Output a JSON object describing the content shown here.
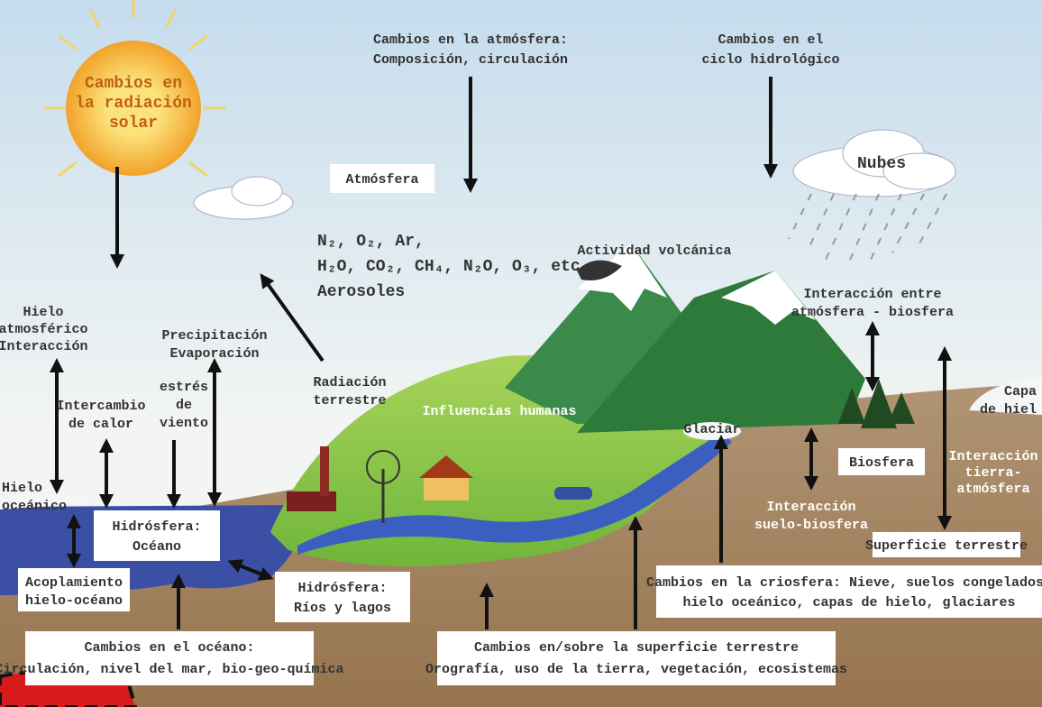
{
  "labels": {
    "sun": [
      "Cambios en",
      "la radiación",
      "solar"
    ],
    "atmosphere_changes": [
      "Cambios en la atmósfera:",
      "Composición, circulación"
    ],
    "hydro_changes": [
      "Cambios en el",
      "ciclo hidrológico"
    ],
    "atmosphere": "Atmósfera",
    "composition": [
      "N₂, O₂, Ar,",
      "H₂O, CO₂, CH₄, N₂O, O₃, etc.",
      "Aerosoles"
    ],
    "clouds": "Nubes",
    "volcanic": "Actividad volcánica",
    "atm_bio": [
      "Interacción entre",
      "atmósfera - biosfera"
    ],
    "ice_atm": [
      "Hielo",
      "atmosférico",
      "Interacción"
    ],
    "precip": [
      "Precipitación",
      "Evaporación"
    ],
    "heat": [
      "Intercambio",
      "de calor"
    ],
    "wind": [
      "estrés",
      "de",
      "viento"
    ],
    "radiation": [
      "Radiación",
      "terrestre"
    ],
    "human": "Influencias humanas",
    "glacier": "Glaciar",
    "ice_sheets": [
      "Capa",
      "de hiel"
    ],
    "sea_ice": [
      "Hielo",
      "oceánico"
    ],
    "hydro_ocean": [
      "Hidrósfera:",
      "Océano"
    ],
    "biosphere": "Biosfera",
    "land_atm": [
      "Interacción",
      "tierra-",
      "atmósfera"
    ],
    "soil_bio": [
      "Interacción",
      "suelo-biosfera"
    ],
    "land_surface": "Superficie terrestre",
    "coupling": [
      "Acoplamiento",
      "hielo-océano"
    ],
    "rivers": [
      "Hidrósfera:",
      "Ríos y lagos"
    ],
    "cryo": [
      "Cambios en la criosfera: Nieve, suelos congelados,",
      "hielo oceánico, capas de hielo, glaciares"
    ],
    "ocean_changes": [
      "Cambios en el océano:",
      "Circulación, nivel del mar, bio-geo-química"
    ],
    "land_changes": [
      "Cambios en/sobre la superficie terrestre",
      "Orografía, uso de la tierra, vegetación, ecosistemas"
    ]
  }
}
